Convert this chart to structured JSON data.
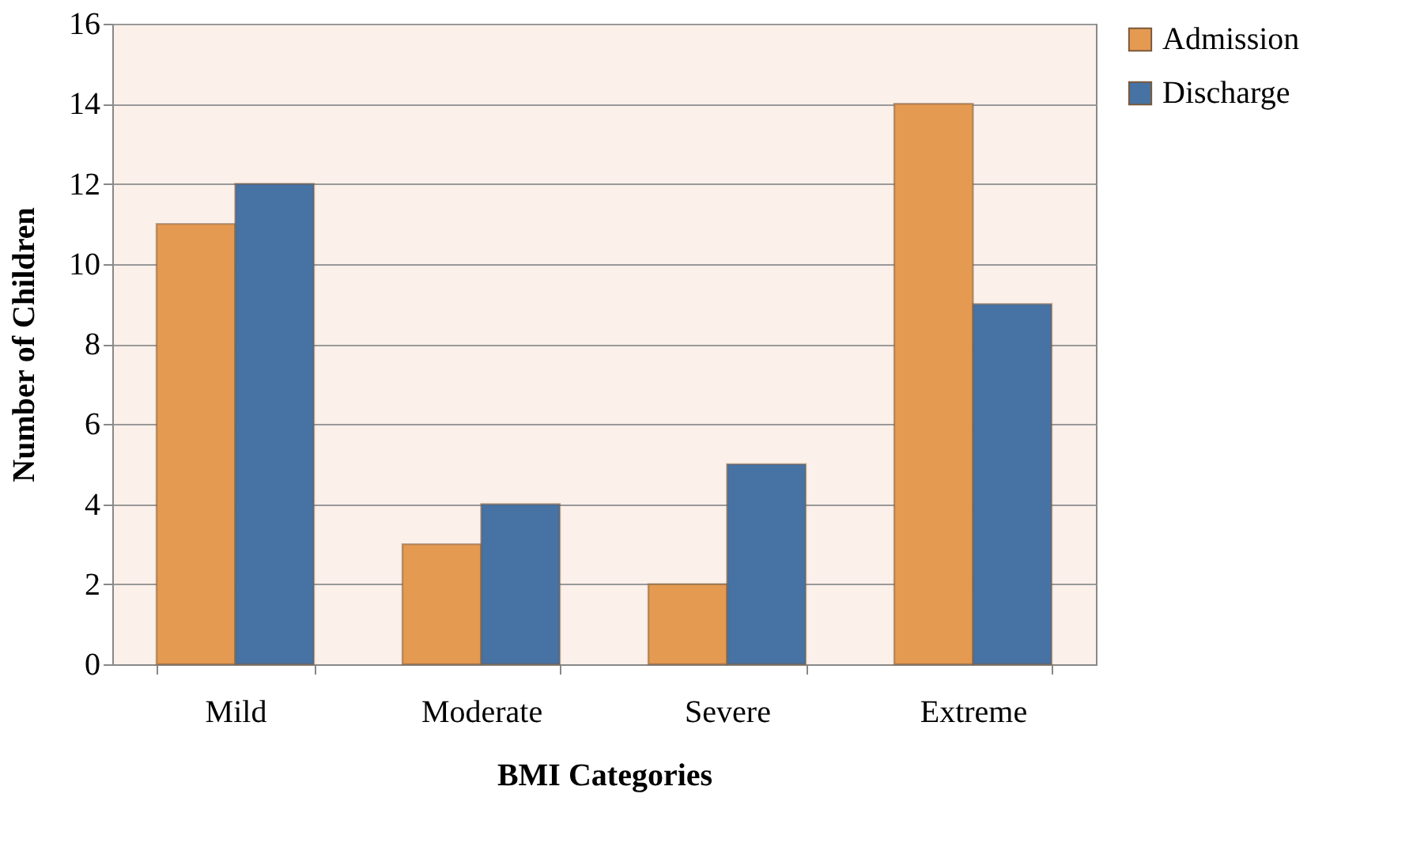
{
  "chart_data": {
    "type": "bar",
    "xlabel": "BMI Categories",
    "ylabel": "Number of Children",
    "categories": [
      "Mild",
      "Moderate",
      "Severe",
      "Extreme"
    ],
    "series": [
      {
        "name": "Admission",
        "color": "#e59a52",
        "values": [
          11,
          3,
          2,
          14
        ]
      },
      {
        "name": "Discharge",
        "color": "#4672a4",
        "values": [
          12,
          4,
          5,
          9
        ]
      }
    ],
    "ylim": [
      0,
      16
    ],
    "yticks": [
      0,
      2,
      4,
      6,
      8,
      10,
      12,
      14,
      16
    ],
    "grid": "y",
    "legend": "right"
  }
}
